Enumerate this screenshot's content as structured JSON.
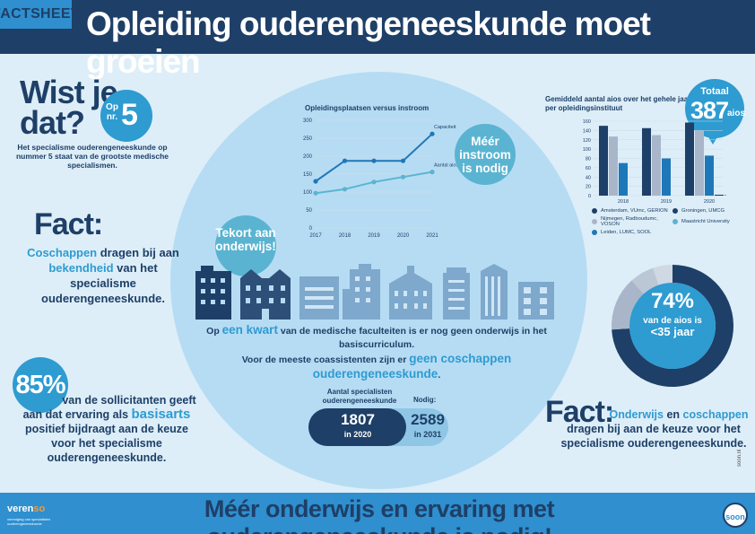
{
  "header": {
    "tag": "FACTSHEET",
    "title": "Opleiding ouderengeneeskunde moet groeien"
  },
  "wist_je_dat": {
    "title_line1": "Wist je",
    "title_line2": "dat?",
    "badge_op": "Op",
    "badge_nr": "nr.",
    "badge_number": "5",
    "text": "Het specialisme ouderengeneeskunde op nummer 5 staat van de grootste medische specialismen."
  },
  "fact1": {
    "title": "Fact:",
    "part1": "Coschappen",
    "part2": " dragen bij aan ",
    "part3": "bekendheid",
    "part4": " van het specialisme ouderengeneeskunde."
  },
  "pct85": {
    "value": "85%",
    "part1": "van de sollicitanten geeft aan dat ervaring als ",
    "part2": "basisarts",
    "part3": " positief bijdraagt aan de keuze voor het specialisme ouderengeneeskunde."
  },
  "line_chart_title": "Opleidingsplaatsen versus instroom",
  "meer_bubble": "Méér instroom is nodig",
  "tekort_bubble": "Tekort aan onderwijs!",
  "kwart": {
    "part1": "Op ",
    "part2": "een kwart",
    "part3": " van de medische faculteiten is er nog geen onderwijs in het basiscurriculum.",
    "part4": "Voor de meeste coassistenten zijn er ",
    "part5": "geen coschappen ouderengeneeskunde",
    "part6": "."
  },
  "specialists": {
    "label": "Aantal specialisten ouderengeneeskunde",
    "nodig_label": "Nodig:",
    "current_value": "1807",
    "current_sub": "in 2020",
    "needed_value": "2589",
    "needed_sub": "in 2031",
    "current_fraction": 0.698
  },
  "bar_chart_title": "Gemiddeld aantal aios over het gehele jaar per opleidingsinstituut",
  "totaal": {
    "label": "Totaal",
    "value": "387",
    "unit": "aios"
  },
  "donut": {
    "value": "74%",
    "text1": "van de aios is",
    "text2": "<35 jaar",
    "fraction": 0.74
  },
  "fact2": {
    "title": "Fact:",
    "part1": "Onderwijs",
    "part2": " en ",
    "part3": "coschappen",
    "part4": "dragen bij aan de keuze voor het specialisme ouderengeneeskunde."
  },
  "side_credit": "soon.nl",
  "footer": {
    "logo_name": "veren",
    "logo_suffix": "so",
    "logo_sub": "vereniging van specialisten ouderengeneeskunde",
    "text": "Méér onderwijs en ervaring met ouderengeneeskunde is nodig!",
    "soon_logo": "soon"
  },
  "colors": {
    "navy": "#1e3f67",
    "accent": "#2e9bd1",
    "light_bg": "#ddeef8",
    "circle": "#b6dcf4"
  },
  "chart_data": [
    {
      "type": "line",
      "title": "Opleidingsplaatsen versus instroom",
      "x": [
        "2017",
        "2018",
        "2019",
        "2020",
        "2021"
      ],
      "ylim": [
        0,
        300
      ],
      "yticks": [
        0,
        50,
        100,
        150,
        200,
        250,
        300
      ],
      "grid": true,
      "series": [
        {
          "name": "Capaciteit",
          "values": [
            130,
            187,
            187,
            187,
            262
          ],
          "color": "#1e78b8"
        },
        {
          "name": "Aantal aios",
          "values": [
            97,
            108,
            128,
            142,
            156
          ],
          "color": "#5ab4d1"
        }
      ]
    },
    {
      "type": "bar",
      "categories": [
        "2018",
        "2019",
        "2020"
      ],
      "ylim": [
        0,
        160
      ],
      "yticks": [
        0,
        20,
        40,
        60,
        80,
        100,
        120,
        140,
        160
      ],
      "grid": true,
      "series": [
        {
          "name": "Amsterdam, VUmc, GERION",
          "values": [
            150,
            145,
            157
          ],
          "color": "#1e3f67"
        },
        {
          "name": "Nijmegen, Radboudumc, VOSON",
          "values": [
            127,
            130,
            140
          ],
          "color": "#a9b6c9"
        },
        {
          "name": "Leiden, LUMC, SOOL",
          "values": [
            70,
            80,
            86
          ],
          "color": "#1e78b8"
        },
        {
          "name": "Groningen, UMCG",
          "values": [
            0,
            0,
            2
          ],
          "color": "#1e3f67"
        },
        {
          "name": "Maastricht University",
          "values": [
            0,
            0,
            2
          ],
          "color": "#5ab4d1"
        }
      ]
    },
    {
      "type": "pie",
      "title": "",
      "categories": [
        "<35 jaar",
        "overig"
      ],
      "values": [
        74,
        26
      ]
    }
  ]
}
